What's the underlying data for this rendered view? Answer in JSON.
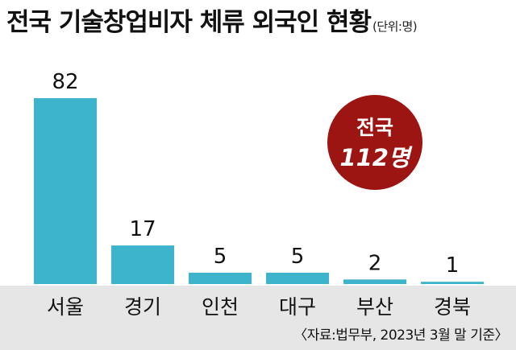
{
  "title": "전국 기술창업비자 체류 외국인 현황",
  "unit_note": "(단위:명)",
  "source": "〈자료:법무부, 2023년 3월 말 기준〉",
  "badge": {
    "line1": "전국",
    "line2": "112명",
    "color": "#9c1512"
  },
  "colors": {
    "bar": "#3db3cc",
    "footer_band": "#e6e6e6"
  },
  "chart_data": {
    "type": "bar",
    "categories": [
      "서울",
      "경기",
      "인천",
      "대구",
      "부산",
      "경북"
    ],
    "values": [
      82,
      17,
      5,
      5,
      2,
      1
    ],
    "title": "전국 기술창업비자 체류 외국인 현황",
    "xlabel": "",
    "ylabel": "",
    "ylim": [
      0,
      82
    ],
    "grid": false,
    "legend": "none"
  }
}
